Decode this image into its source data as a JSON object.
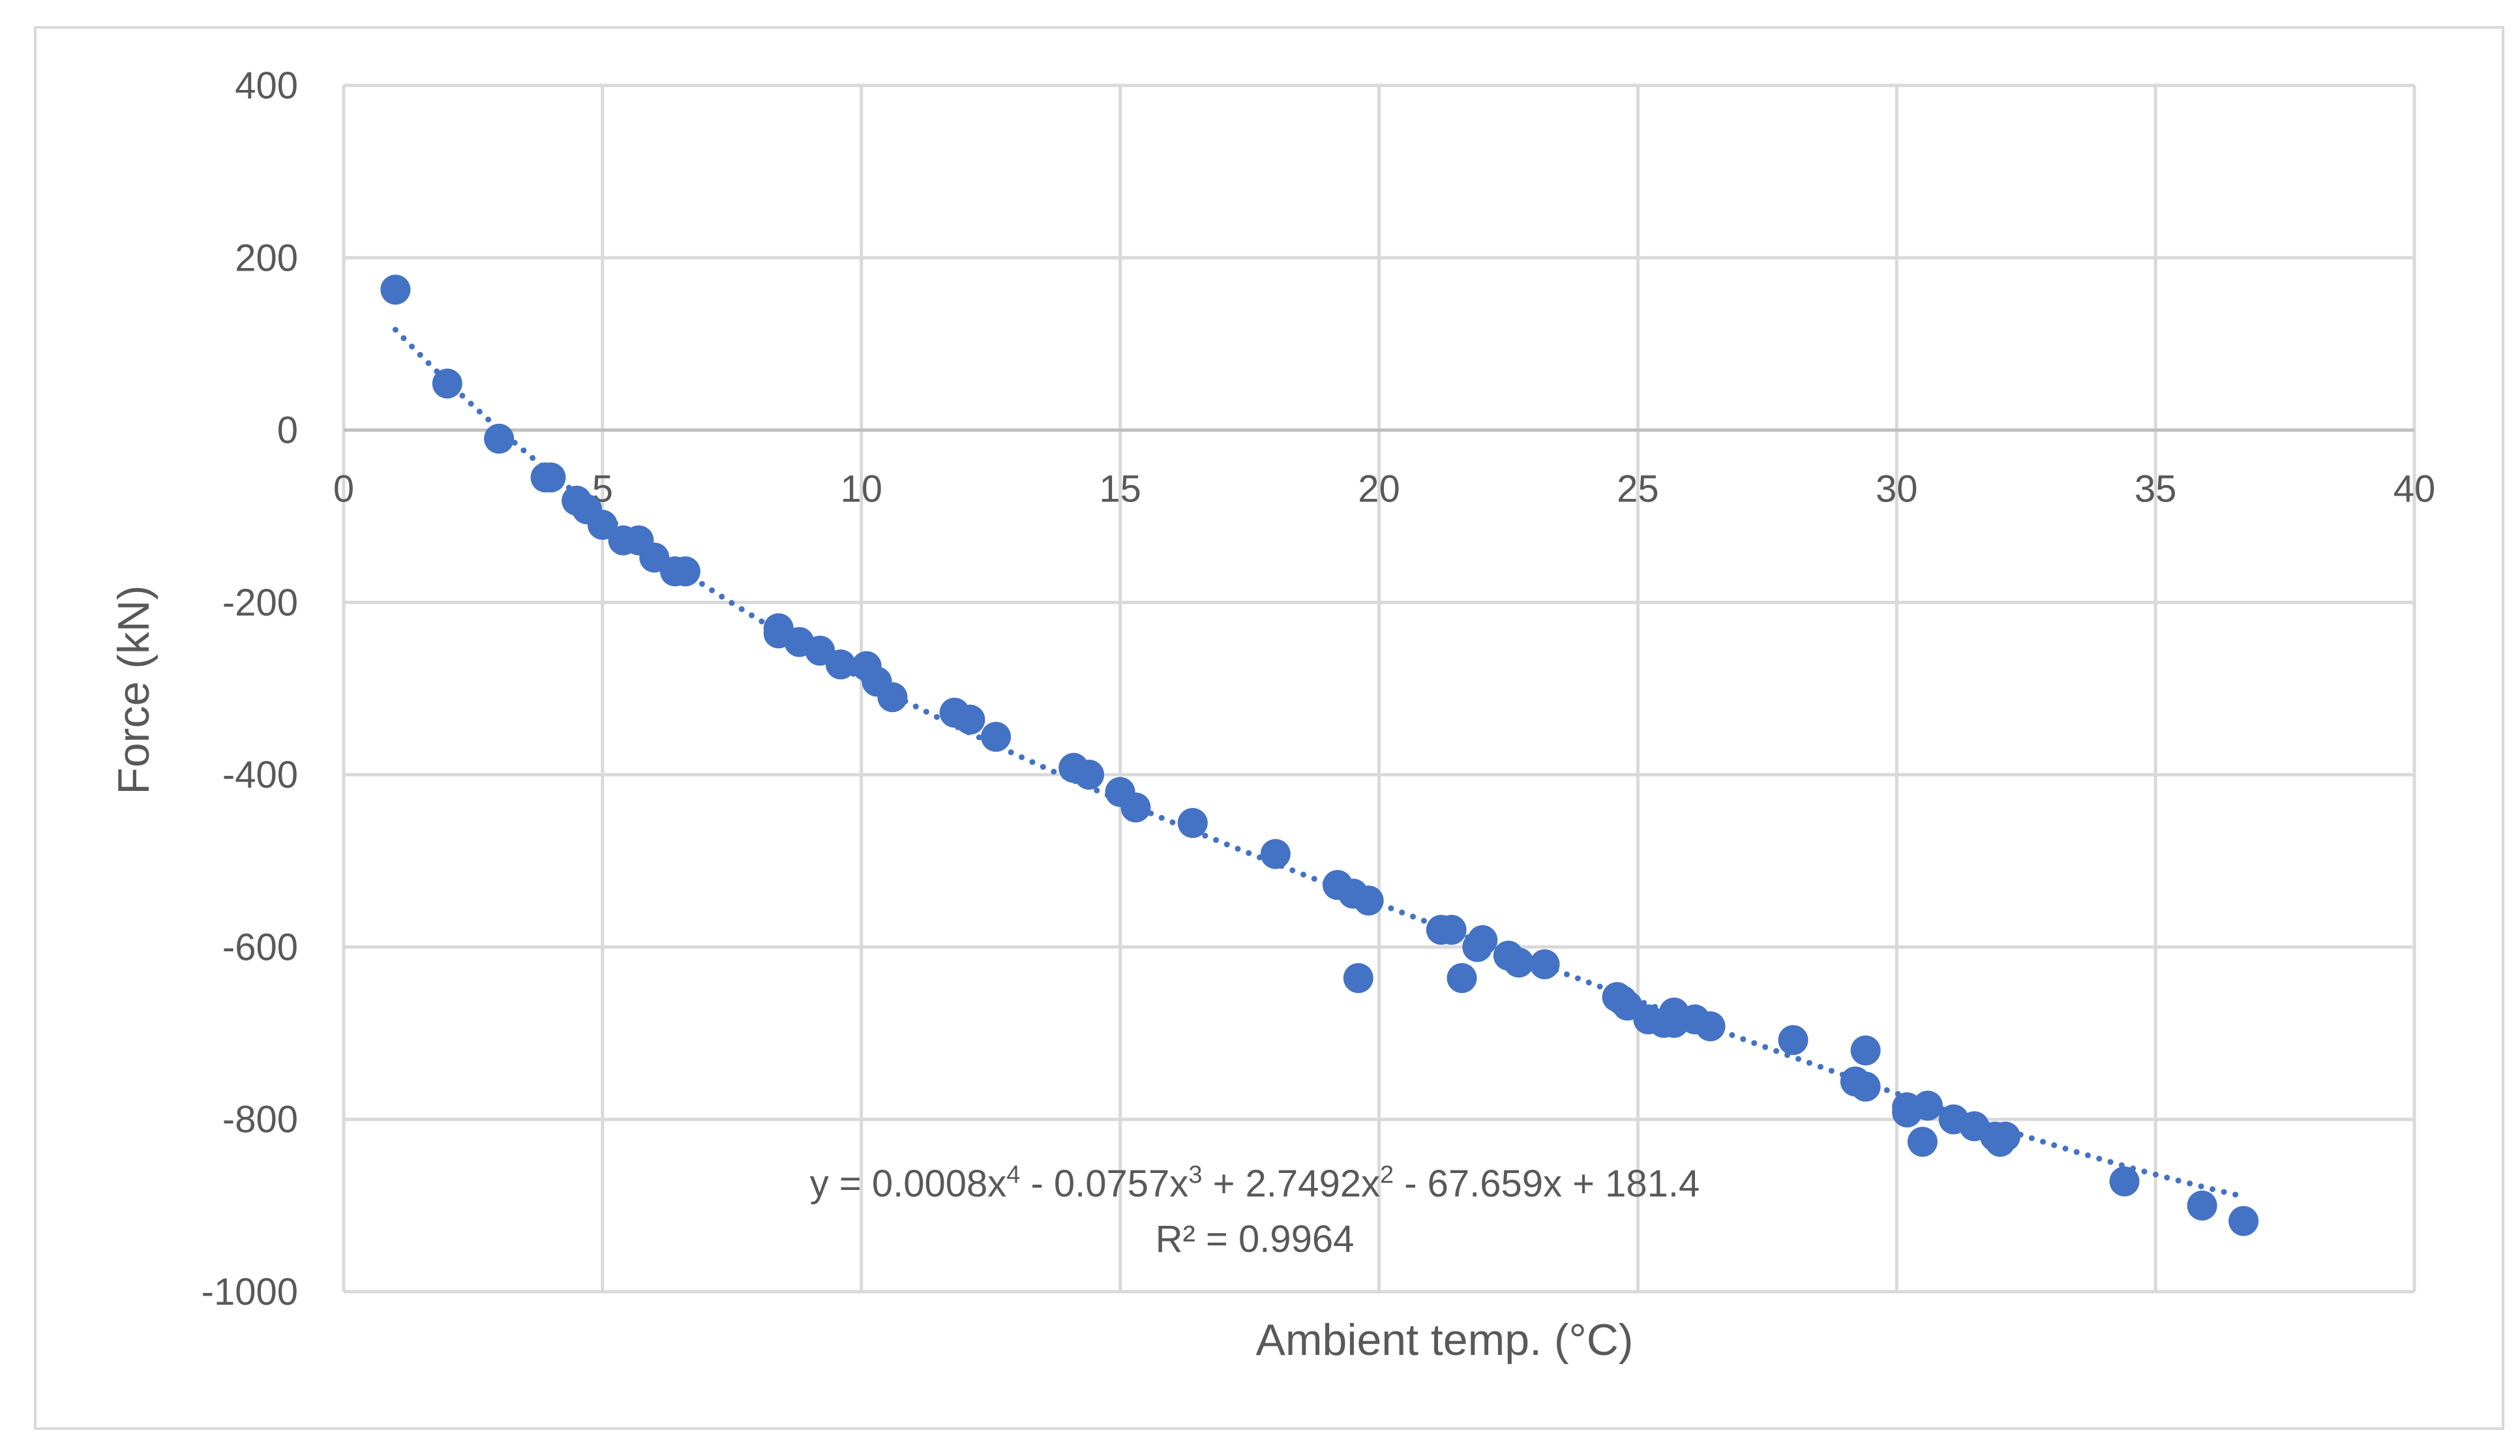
{
  "chart_data": {
    "type": "scatter",
    "title": "",
    "xlabel": "Ambient temp. (°C)",
    "ylabel": "Force (kN)",
    "xlim": [
      0,
      40
    ],
    "ylim": [
      -1000,
      400
    ],
    "xticks": [
      0,
      5,
      10,
      15,
      20,
      25,
      30,
      35,
      40
    ],
    "yticks": [
      400,
      200,
      0,
      -200,
      -400,
      -600,
      -800,
      -1000
    ],
    "grid": true,
    "legend": "none",
    "series": [
      {
        "name": "Force",
        "color": "#4472c4",
        "points": [
          [
            1,
            163
          ],
          [
            2,
            54
          ],
          [
            3,
            -10
          ],
          [
            3.9,
            -55
          ],
          [
            4,
            -55
          ],
          [
            4.5,
            -82
          ],
          [
            4.7,
            -92
          ],
          [
            5,
            -110
          ],
          [
            5.4,
            -128
          ],
          [
            5.7,
            -128
          ],
          [
            6,
            -148
          ],
          [
            6.4,
            -164
          ],
          [
            6.6,
            -164
          ],
          [
            8.4,
            -230
          ],
          [
            8.4,
            -236
          ],
          [
            8.8,
            -246
          ],
          [
            9.2,
            -256
          ],
          [
            9.6,
            -272
          ],
          [
            10.1,
            -274
          ],
          [
            10.3,
            -292
          ],
          [
            10.6,
            -310
          ],
          [
            11.8,
            -328
          ],
          [
            12.1,
            -336
          ],
          [
            12.6,
            -356
          ],
          [
            14.1,
            -392
          ],
          [
            14.4,
            -400
          ],
          [
            15,
            -420
          ],
          [
            15.3,
            -438
          ],
          [
            16.4,
            -456
          ],
          [
            18,
            -492
          ],
          [
            19.2,
            -528
          ],
          [
            19.5,
            -538
          ],
          [
            19.8,
            -546
          ],
          [
            19.6,
            -636
          ],
          [
            21.2,
            -580
          ],
          [
            21.4,
            -580
          ],
          [
            21.6,
            -636
          ],
          [
            21.9,
            -600
          ],
          [
            22,
            -592
          ],
          [
            22.5,
            -610
          ],
          [
            22.7,
            -618
          ],
          [
            23.2,
            -620
          ],
          [
            24.6,
            -658
          ],
          [
            24.7,
            -662
          ],
          [
            24.8,
            -668
          ],
          [
            25.2,
            -684
          ],
          [
            25.5,
            -688
          ],
          [
            25.7,
            -688
          ],
          [
            25.7,
            -676
          ],
          [
            26.1,
            -684
          ],
          [
            26.4,
            -692
          ],
          [
            28,
            -708
          ],
          [
            29.2,
            -756
          ],
          [
            29.4,
            -762
          ],
          [
            29.4,
            -720
          ],
          [
            30.2,
            -786
          ],
          [
            30.2,
            -792
          ],
          [
            30.5,
            -826
          ],
          [
            30.6,
            -784
          ],
          [
            31.1,
            -800
          ],
          [
            31.5,
            -808
          ],
          [
            31.9,
            -820
          ],
          [
            32,
            -826
          ],
          [
            32.1,
            -820
          ],
          [
            34.4,
            -872
          ],
          [
            35.9,
            -900
          ],
          [
            36.7,
            -918
          ]
        ]
      }
    ],
    "trendline": {
      "type": "polynomial",
      "order": 4,
      "coefficients": [
        0.0008,
        -0.0757,
        2.7492,
        -67.659,
        181.4
      ],
      "x_range": [
        1,
        36.7
      ],
      "style": "dotted",
      "equation_parts": [
        "y = 0.0008x",
        "4",
        " - 0.0757x",
        "3",
        " + 2.7492x",
        "2",
        " - 67.659x + 181.4"
      ],
      "r2_label": "R² = 0.9964"
    }
  }
}
